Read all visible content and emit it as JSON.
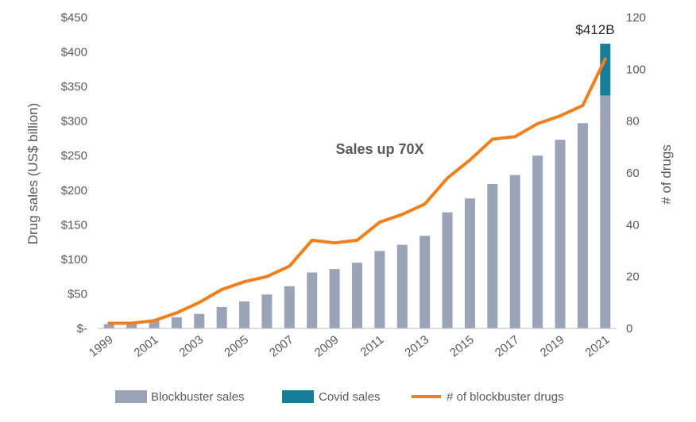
{
  "chart_data": {
    "type": "bar",
    "years": [
      "1999",
      "2000",
      "2001",
      "2002",
      "2003",
      "2004",
      "2005",
      "2006",
      "2007",
      "2008",
      "2009",
      "2010",
      "2011",
      "2012",
      "2013",
      "2014",
      "2015",
      "2016",
      "2017",
      "2018",
      "2019",
      "2020",
      "2021"
    ],
    "x_tick_labels": [
      "1999",
      "2001",
      "2003",
      "2005",
      "2007",
      "2009",
      "2011",
      "2013",
      "2015",
      "2017",
      "2019",
      "2021"
    ],
    "series": [
      {
        "name": "Blockbuster sales",
        "kind": "bar",
        "axis": "left",
        "color": "#9aa3b8",
        "values": [
          6,
          9,
          12,
          16,
          21,
          31,
          39,
          49,
          61,
          81,
          86,
          95,
          112,
          121,
          134,
          168,
          188,
          209,
          222,
          250,
          273,
          297,
          337
        ]
      },
      {
        "name": "Covid sales",
        "kind": "bar-stacked",
        "axis": "left",
        "color": "#177e9a",
        "values": [
          0,
          0,
          0,
          0,
          0,
          0,
          0,
          0,
          0,
          0,
          0,
          0,
          0,
          0,
          0,
          0,
          0,
          0,
          0,
          0,
          0,
          0,
          75
        ]
      },
      {
        "name": "# of blockbuster drugs",
        "kind": "line",
        "axis": "right",
        "color": "#f07f1c",
        "values": [
          2,
          2,
          3,
          6,
          10,
          15,
          18,
          20,
          24,
          34,
          33,
          34,
          41,
          44,
          48,
          58,
          65,
          73,
          74,
          79,
          82,
          86,
          104
        ]
      }
    ],
    "y_left": {
      "label": "Drug sales (US$ billion)",
      "range": [
        0,
        450
      ],
      "tick_labels": [
        "$-",
        "$50",
        "$100",
        "$150",
        "$200",
        "$250",
        "$300",
        "$350",
        "$400",
        "$450"
      ]
    },
    "y_right": {
      "label": "# of drugs",
      "range": [
        0,
        120
      ],
      "tick_labels": [
        "0",
        "20",
        "40",
        "60",
        "80",
        "100",
        "120"
      ]
    },
    "annotations": [
      {
        "text": "Sales up 70X"
      },
      {
        "text": "$412B"
      }
    ],
    "legend": {
      "position": "bottom"
    },
    "grid": false
  }
}
